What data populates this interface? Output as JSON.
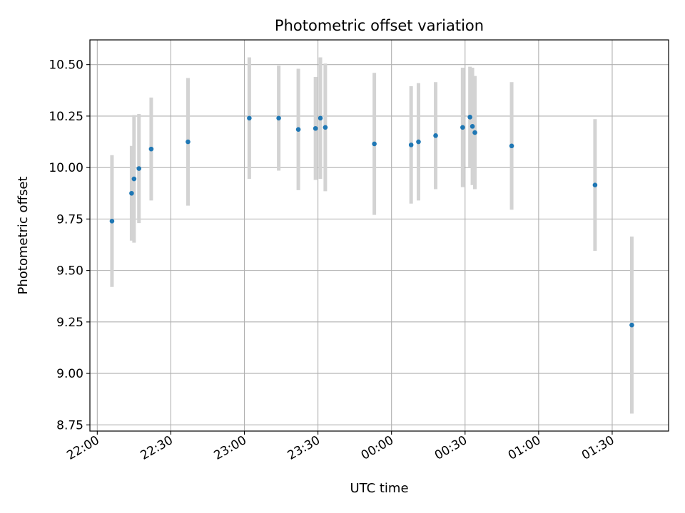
{
  "chart_data": {
    "type": "scatter",
    "title": "Photometric offset variation",
    "xlabel": "UTC time",
    "ylabel": "Photometric offset",
    "x_axis_type": "time",
    "x_domain_start": "21:57",
    "x_domain_end": "01:53",
    "x_ticks": [
      "22:00",
      "22:30",
      "23:00",
      "23:30",
      "00:00",
      "00:30",
      "01:00",
      "01:30"
    ],
    "ylim": [
      8.72,
      10.62
    ],
    "y_ticks": [
      "8.75",
      "9.00",
      "9.25",
      "9.50",
      "9.75",
      "10.00",
      "10.25",
      "10.50"
    ],
    "grid": true,
    "colors": {
      "point": "#1f77b4",
      "errorbar": "#d3d3d3",
      "grid": "#b0b0b0"
    },
    "points": [
      {
        "x": "22:06",
        "y": 9.74,
        "err": 0.32
      },
      {
        "x": "22:14",
        "y": 9.875,
        "err": 0.23
      },
      {
        "x": "22:15",
        "y": 9.945,
        "err": 0.31
      },
      {
        "x": "22:17",
        "y": 9.995,
        "err": 0.265
      },
      {
        "x": "22:22",
        "y": 10.09,
        "err": 0.25
      },
      {
        "x": "22:37",
        "y": 10.125,
        "err": 0.31
      },
      {
        "x": "23:02",
        "y": 10.24,
        "err": 0.295
      },
      {
        "x": "23:14",
        "y": 10.24,
        "err": 0.255
      },
      {
        "x": "23:22",
        "y": 10.185,
        "err": 0.295
      },
      {
        "x": "23:29",
        "y": 10.19,
        "err": 0.25
      },
      {
        "x": "23:31",
        "y": 10.24,
        "err": 0.295
      },
      {
        "x": "23:33",
        "y": 10.195,
        "err": 0.31
      },
      {
        "x": "23:53",
        "y": 10.115,
        "err": 0.345
      },
      {
        "x": "00:08",
        "y": 10.11,
        "err": 0.285
      },
      {
        "x": "00:11",
        "y": 10.125,
        "err": 0.285
      },
      {
        "x": "00:18",
        "y": 10.155,
        "err": 0.26
      },
      {
        "x": "00:29",
        "y": 10.195,
        "err": 0.29
      },
      {
        "x": "00:32",
        "y": 10.245,
        "err": 0.245
      },
      {
        "x": "00:33",
        "y": 10.2,
        "err": 0.285
      },
      {
        "x": "00:34",
        "y": 10.17,
        "err": 0.275
      },
      {
        "x": "00:49",
        "y": 10.105,
        "err": 0.31
      },
      {
        "x": "01:23",
        "y": 9.915,
        "err": 0.32
      },
      {
        "x": "01:38",
        "y": 9.235,
        "err": 0.43
      }
    ]
  }
}
